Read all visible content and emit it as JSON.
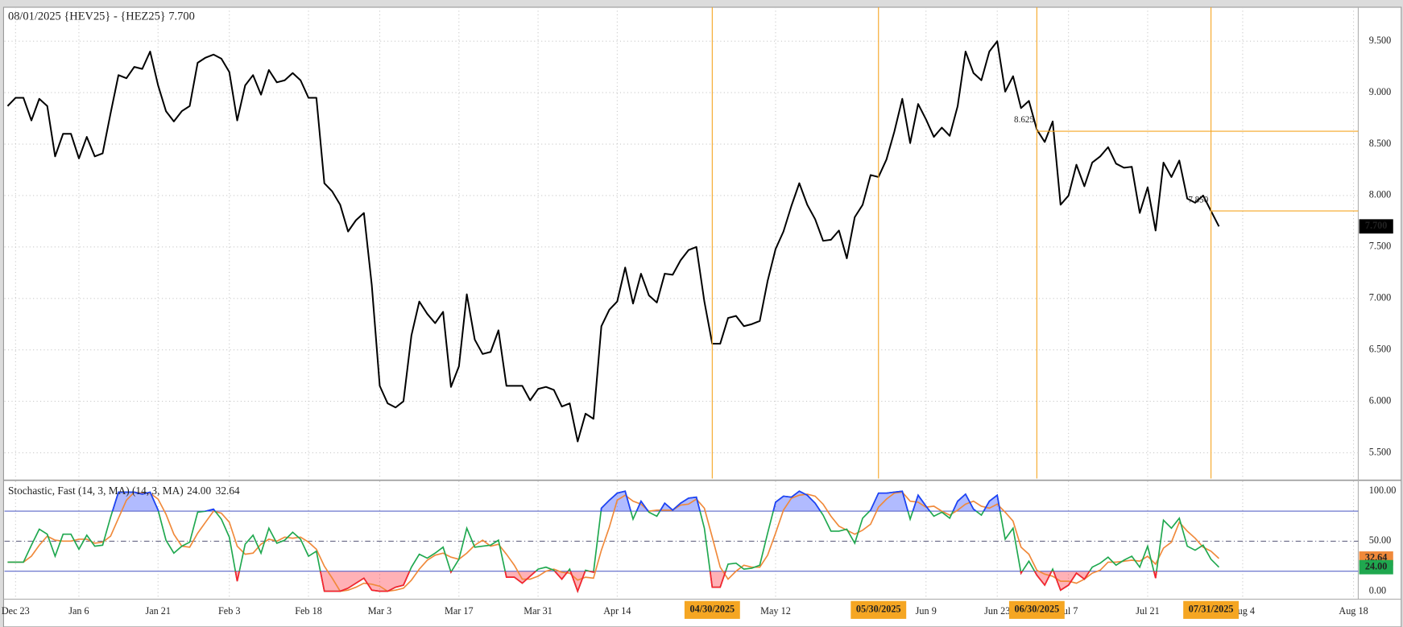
{
  "chart_data": [
    {
      "type": "line",
      "title": "08/01/2025 {HEV25} - {HEZ25} 7.700",
      "x": [
        -1,
        0,
        1,
        2,
        3,
        4,
        5,
        6,
        7,
        8,
        9,
        10,
        11,
        12,
        13,
        14,
        15,
        16,
        17,
        18,
        19,
        20,
        21,
        22,
        23,
        24,
        25,
        26,
        27,
        28,
        29,
        30,
        31,
        32,
        33,
        34,
        35,
        36,
        37,
        38,
        39,
        40,
        41,
        42,
        43,
        44,
        45,
        46,
        47,
        48,
        49,
        50,
        51,
        52,
        53,
        54,
        55,
        56,
        57,
        58,
        59,
        60,
        61,
        62,
        63,
        64,
        65,
        66,
        67,
        68,
        69,
        70,
        71,
        72,
        73,
        74,
        75,
        76,
        77,
        78,
        79,
        80,
        81,
        82,
        83,
        84,
        85,
        86,
        87,
        88,
        89,
        90,
        91,
        92,
        93,
        94,
        95,
        96,
        97,
        98,
        99,
        100,
        101,
        102,
        103,
        104,
        105,
        106,
        107,
        108,
        109,
        110,
        111,
        112,
        113,
        114,
        115,
        116,
        117,
        118,
        119,
        120,
        121,
        122,
        123,
        124,
        125,
        126,
        127,
        128,
        129,
        130,
        131,
        132,
        133,
        134,
        135,
        136,
        137,
        138,
        139,
        140,
        141,
        142,
        143,
        144,
        145,
        146,
        147,
        148,
        149,
        150,
        151,
        152
      ],
      "series": [
        {
          "color": "#000000",
          "last_label": "7.700",
          "values": [
            8.87,
            8.95,
            8.95,
            8.73,
            8.94,
            8.87,
            8.38,
            8.6,
            8.6,
            8.36,
            8.57,
            8.38,
            8.41,
            8.8,
            9.17,
            9.14,
            9.25,
            9.23,
            9.4,
            9.07,
            8.82,
            8.72,
            8.82,
            8.87,
            9.29,
            9.34,
            9.37,
            9.33,
            9.2,
            8.73,
            9.07,
            9.17,
            8.98,
            9.22,
            9.1,
            9.12,
            9.19,
            9.12,
            8.95,
            8.95,
            8.12,
            8.04,
            7.91,
            7.65,
            7.76,
            7.83,
            7.13,
            6.15,
            5.98,
            5.94,
            6.0,
            6.64,
            6.97,
            6.85,
            6.76,
            6.87,
            6.14,
            6.34,
            7.04,
            6.6,
            6.46,
            6.48,
            6.69,
            6.15,
            6.15,
            6.15,
            6.01,
            6.12,
            6.14,
            6.11,
            5.95,
            5.98,
            5.61,
            5.88,
            5.83,
            6.73,
            6.89,
            6.97,
            7.3,
            6.95,
            7.24,
            7.03,
            6.96,
            7.24,
            7.23,
            7.37,
            7.47,
            7.5,
            6.97,
            6.56,
            6.56,
            6.81,
            6.83,
            6.73,
            6.75,
            6.78,
            7.17,
            7.48,
            7.65,
            7.9,
            8.12,
            7.91,
            7.77,
            7.56,
            7.57,
            7.66,
            7.39,
            7.79,
            7.91,
            8.2,
            8.18,
            8.35,
            8.62,
            8.94,
            8.51,
            8.89,
            8.74,
            8.57,
            8.66,
            8.58,
            8.87,
            9.4,
            9.19,
            9.12,
            9.4,
            9.5,
            9.01,
            9.16,
            8.85,
            8.92,
            8.64,
            8.52,
            8.72,
            7.91,
            8.0,
            8.3,
            8.09,
            8.32,
            8.38,
            8.47,
            8.31,
            8.27,
            8.28,
            7.83,
            8.08,
            7.66,
            8.32,
            8.18,
            8.34,
            7.97,
            7.93,
            8.0,
            7.85,
            7.7
          ]
        }
      ],
      "xlim": [
        -1.4,
        169.6
      ],
      "xticks": [
        {
          "value": 0,
          "label": "Dec 23"
        },
        {
          "value": 8,
          "label": "Jan 6"
        },
        {
          "value": 18,
          "label": "Jan 21"
        },
        {
          "value": 27,
          "label": "Feb 3"
        },
        {
          "value": 37,
          "label": "Feb 18"
        },
        {
          "value": 46,
          "label": "Mar 3"
        },
        {
          "value": 56,
          "label": "Mar 17"
        },
        {
          "value": 66,
          "label": "Mar 31"
        },
        {
          "value": 76,
          "label": "Apr 14"
        },
        {
          "value": 96,
          "label": "May 12"
        },
        {
          "value": 115,
          "label": "Jun 9"
        },
        {
          "value": 124,
          "label": "Jun 23"
        },
        {
          "value": 133,
          "label": "Jul 7"
        },
        {
          "value": 143,
          "label": "Jul 21"
        },
        {
          "value": 155,
          "label": "Aug 4"
        },
        {
          "value": 169,
          "label": "Aug 18"
        }
      ],
      "ylim": [
        5.25,
        9.83
      ],
      "yticks": [
        {
          "value": 5.5,
          "label": "5.500"
        },
        {
          "value": 6,
          "label": "6.000"
        },
        {
          "value": 6.5,
          "label": "6.500"
        },
        {
          "value": 7,
          "label": "7.000"
        },
        {
          "value": 7.5,
          "label": "7.500"
        },
        {
          "value": 8,
          "label": "8.000"
        },
        {
          "value": 8.5,
          "label": "8.500"
        },
        {
          "value": 9,
          "label": "9.000"
        },
        {
          "value": 9.5,
          "label": "9.500"
        }
      ],
      "grid": true,
      "annotation_color": "#f5a623",
      "vlines": [
        {
          "x": 88,
          "label": "04/30/2025"
        },
        {
          "x": 109,
          "label": "05/30/2025"
        },
        {
          "x": 129,
          "label": "06/30/2025"
        },
        {
          "x": 151,
          "label": "07/31/2025"
        }
      ],
      "hlines": [
        {
          "x": 129,
          "value": 8.625,
          "label": "8.625"
        },
        {
          "x": 151,
          "value": 7.85,
          "label": "7.850"
        }
      ]
    },
    {
      "type": "stochastic",
      "title": "Stochastic, Fast (14, 3, MA) (14, 3, MA)",
      "x": [
        -1,
        0,
        1,
        2,
        3,
        4,
        5,
        6,
        7,
        8,
        9,
        10,
        11,
        12,
        13,
        14,
        15,
        16,
        17,
        18,
        19,
        20,
        21,
        22,
        23,
        24,
        25,
        26,
        27,
        28,
        29,
        30,
        31,
        32,
        33,
        34,
        35,
        36,
        37,
        38,
        39,
        40,
        41,
        42,
        43,
        44,
        45,
        46,
        47,
        48,
        49,
        50,
        51,
        52,
        53,
        54,
        55,
        56,
        57,
        58,
        59,
        60,
        61,
        62,
        63,
        64,
        65,
        66,
        67,
        68,
        69,
        70,
        71,
        72,
        73,
        74,
        75,
        76,
        77,
        78,
        79,
        80,
        81,
        82,
        83,
        84,
        85,
        86,
        87,
        88,
        89,
        90,
        91,
        92,
        93,
        94,
        95,
        96,
        97,
        98,
        99,
        100,
        101,
        102,
        103,
        104,
        105,
        106,
        107,
        108,
        109,
        110,
        111,
        112,
        113,
        114,
        115,
        116,
        117,
        118,
        119,
        120,
        121,
        122,
        123,
        124,
        125,
        126,
        127,
        128,
        129,
        130,
        131,
        132,
        133,
        134,
        135,
        136,
        137,
        138,
        139,
        140,
        141,
        142,
        143,
        144,
        145,
        146,
        147,
        148,
        149,
        150,
        151,
        152
      ],
      "series": [
        {
          "color": "#1fa84f",
          "last_label": "24.00",
          "values": [
            29,
            29,
            29,
            46,
            62,
            57,
            35,
            57,
            57,
            42,
            56,
            45,
            46,
            74,
            99,
            99,
            99,
            97,
            99,
            81,
            51,
            38,
            45,
            49,
            79,
            80,
            82,
            72,
            54,
            10,
            47,
            56,
            38,
            63,
            48,
            51,
            59,
            52,
            35,
            40,
            0,
            0,
            0,
            3,
            8,
            13,
            1,
            0,
            0,
            4,
            6,
            24,
            37,
            33,
            38,
            44,
            19,
            32,
            63,
            44,
            45,
            46,
            51,
            14,
            14,
            8,
            15,
            22,
            24,
            21,
            12,
            22,
            0,
            21,
            19,
            83,
            91,
            98,
            100,
            72,
            90,
            79,
            75,
            88,
            81,
            88,
            93,
            94,
            63,
            4,
            4,
            27,
            28,
            22,
            23,
            26,
            58,
            89,
            95,
            94,
            100,
            96,
            88,
            76,
            60,
            60,
            62,
            48,
            73,
            81,
            98,
            98,
            99,
            100,
            72,
            96,
            85,
            75,
            79,
            73,
            90,
            97,
            82,
            76,
            90,
            96,
            52,
            63,
            18,
            30,
            16,
            6,
            22,
            1,
            6,
            18,
            12,
            24,
            28,
            34,
            26,
            31,
            35,
            24,
            45,
            13,
            71,
            63,
            73,
            45,
            41,
            46,
            32,
            24
          ]
        },
        {
          "color": "#f0893a",
          "last_label": "32.64",
          "values": [
            29,
            29,
            29,
            35,
            46,
            55,
            51,
            50,
            50,
            52,
            52,
            48,
            49,
            55,
            73,
            91,
            99,
            98,
            98,
            92,
            77,
            57,
            45,
            44,
            58,
            69,
            80,
            78,
            69,
            45,
            37,
            38,
            47,
            52,
            50,
            54,
            53,
            54,
            49,
            42,
            25,
            13,
            0,
            1,
            4,
            8,
            7,
            5,
            0,
            1,
            3,
            11,
            22,
            31,
            36,
            38,
            34,
            32,
            38,
            46,
            51,
            45,
            47,
            37,
            26,
            12,
            12,
            15,
            20,
            22,
            19,
            18,
            11,
            14,
            13,
            41,
            64,
            91,
            96,
            90,
            87,
            80,
            81,
            81,
            81,
            86,
            87,
            92,
            83,
            54,
            24,
            12,
            20,
            26,
            24,
            24,
            36,
            58,
            81,
            93,
            96,
            97,
            95,
            87,
            75,
            65,
            61,
            57,
            61,
            67,
            84,
            92,
            98,
            99,
            90,
            89,
            84,
            85,
            80,
            76,
            81,
            87,
            90,
            85,
            83,
            87,
            79,
            70,
            44,
            37,
            21,
            17,
            15,
            10,
            10,
            8,
            12,
            18,
            21,
            29,
            29,
            30,
            31,
            30,
            35,
            27,
            43,
            49,
            69,
            60,
            53,
            44,
            40,
            32.64
          ]
        }
      ],
      "xlim": [
        -1.4,
        169.6
      ],
      "ylim": [
        -8,
        110
      ],
      "yticks": [
        {
          "value": 0,
          "label": "0.00"
        },
        {
          "value": 50,
          "label": "50.00"
        },
        {
          "value": 100,
          "label": "100.00"
        }
      ],
      "midline": 50,
      "overbought": 80,
      "oversold": 20,
      "overbought_color": "#1f3dff",
      "oversold_color": "#ff1f2f"
    }
  ]
}
